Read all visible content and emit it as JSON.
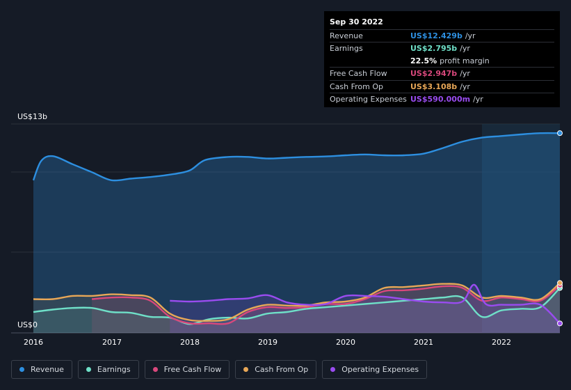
{
  "tooltip": {
    "date": "Sep 30 2022",
    "rows": [
      {
        "label": "Revenue",
        "value": "US$12.429b",
        "unit": "/yr",
        "color": "#2d8fe0"
      },
      {
        "label": "Earnings",
        "value": "US$2.795b",
        "unit": "/yr",
        "color": "#6fe0c8"
      },
      {
        "label": "",
        "value": "22.5%",
        "unit": "profit margin",
        "color": "#ffffff"
      },
      {
        "label": "Free Cash Flow",
        "value": "US$2.947b",
        "unit": "/yr",
        "color": "#d9487c"
      },
      {
        "label": "Cash From Op",
        "value": "US$3.108b",
        "unit": "/yr",
        "color": "#e8a757"
      },
      {
        "label": "Operating Expenses",
        "value": "US$590.000m",
        "unit": "/yr",
        "color": "#9a4cf0"
      }
    ]
  },
  "legend": [
    {
      "label": "Revenue",
      "color": "#2d8fe0"
    },
    {
      "label": "Earnings",
      "color": "#6fe0c8"
    },
    {
      "label": "Free Cash Flow",
      "color": "#d9487c"
    },
    {
      "label": "Cash From Op",
      "color": "#e8a757"
    },
    {
      "label": "Operating Expenses",
      "color": "#9a4cf0"
    }
  ],
  "chart_data": {
    "type": "area",
    "x_ticks": [
      "2016",
      "2017",
      "2018",
      "2019",
      "2020",
      "2021",
      "2022"
    ],
    "y_top_label": "US$13b",
    "y_bottom_label": "US$0",
    "ylim": [
      0,
      13
    ],
    "grid": true,
    "series": [
      {
        "name": "Revenue",
        "color": "#2d8fe0",
        "x": [
          2016.0,
          2016.1,
          2016.25,
          2016.5,
          2016.75,
          2017.0,
          2017.25,
          2017.5,
          2017.75,
          2018.0,
          2018.2,
          2018.5,
          2018.75,
          2019.0,
          2019.25,
          2019.5,
          2019.75,
          2020.0,
          2020.25,
          2020.5,
          2020.75,
          2021.0,
          2021.25,
          2021.5,
          2021.75,
          2022.0,
          2022.25,
          2022.5,
          2022.75
        ],
        "values": [
          9.5,
          10.7,
          11.0,
          10.5,
          10.0,
          9.5,
          9.6,
          9.7,
          9.85,
          10.1,
          10.75,
          10.95,
          10.95,
          10.85,
          10.9,
          10.95,
          10.98,
          11.05,
          11.1,
          11.05,
          11.05,
          11.15,
          11.5,
          11.9,
          12.15,
          12.25,
          12.35,
          12.43,
          12.429
        ]
      },
      {
        "name": "Earnings",
        "color": "#6fe0c8",
        "x": [
          2016.0,
          2016.25,
          2016.5,
          2016.75,
          2017.0,
          2017.25,
          2017.5,
          2017.75,
          2018.0,
          2018.25,
          2018.5,
          2018.75,
          2019.0,
          2019.25,
          2019.5,
          2019.75,
          2020.0,
          2020.25,
          2020.5,
          2020.75,
          2021.0,
          2021.25,
          2021.5,
          2021.75,
          2022.0,
          2022.25,
          2022.5,
          2022.75
        ],
        "values": [
          1.3,
          1.45,
          1.55,
          1.55,
          1.3,
          1.25,
          1.0,
          0.95,
          0.55,
          0.85,
          0.95,
          0.9,
          1.2,
          1.3,
          1.5,
          1.6,
          1.7,
          1.8,
          1.9,
          2.0,
          2.1,
          2.2,
          2.2,
          1.0,
          1.4,
          1.5,
          1.6,
          2.795
        ]
      },
      {
        "name": "Free Cash Flow",
        "color": "#d9487c",
        "x": [
          2016.75,
          2017.0,
          2017.25,
          2017.5,
          2017.75,
          2018.0,
          2018.25,
          2018.5,
          2018.75,
          2019.0,
          2019.25,
          2019.5,
          2019.75,
          2020.0,
          2020.25,
          2020.5,
          2020.75,
          2021.0,
          2021.25,
          2021.5,
          2021.75,
          2022.0,
          2022.25,
          2022.5,
          2022.75
        ],
        "values": [
          2.1,
          2.2,
          2.2,
          2.0,
          1.0,
          0.6,
          0.6,
          0.6,
          1.3,
          1.6,
          1.55,
          1.6,
          1.8,
          1.8,
          2.1,
          2.6,
          2.65,
          2.75,
          2.9,
          2.8,
          2.0,
          2.2,
          2.1,
          2.0,
          2.947
        ]
      },
      {
        "name": "Cash From Op",
        "color": "#e8a757",
        "x": [
          2016.0,
          2016.25,
          2016.5,
          2016.75,
          2017.0,
          2017.25,
          2017.5,
          2017.75,
          2018.0,
          2018.25,
          2018.5,
          2018.75,
          2019.0,
          2019.25,
          2019.5,
          2019.75,
          2020.0,
          2020.25,
          2020.5,
          2020.75,
          2021.0,
          2021.25,
          2021.5,
          2021.75,
          2022.0,
          2022.25,
          2022.5,
          2022.75
        ],
        "values": [
          2.1,
          2.1,
          2.3,
          2.3,
          2.4,
          2.35,
          2.2,
          1.2,
          0.8,
          0.75,
          0.85,
          1.45,
          1.75,
          1.7,
          1.7,
          1.9,
          1.95,
          2.2,
          2.8,
          2.85,
          2.95,
          3.05,
          2.95,
          2.2,
          2.3,
          2.2,
          2.1,
          3.108
        ]
      },
      {
        "name": "Operating Expenses",
        "color": "#9a4cf0",
        "x": [
          2017.75,
          2018.0,
          2018.25,
          2018.5,
          2018.75,
          2019.0,
          2019.25,
          2019.5,
          2019.75,
          2020.0,
          2020.25,
          2020.5,
          2020.75,
          2021.0,
          2021.25,
          2021.5,
          2021.65,
          2021.8,
          2022.0,
          2022.25,
          2022.5,
          2022.75
        ],
        "values": [
          2.0,
          1.95,
          2.0,
          2.1,
          2.15,
          2.35,
          1.9,
          1.75,
          1.8,
          2.3,
          2.3,
          2.25,
          2.1,
          1.95,
          1.9,
          1.95,
          3.0,
          1.8,
          1.75,
          1.75,
          1.75,
          0.59
        ]
      }
    ]
  }
}
